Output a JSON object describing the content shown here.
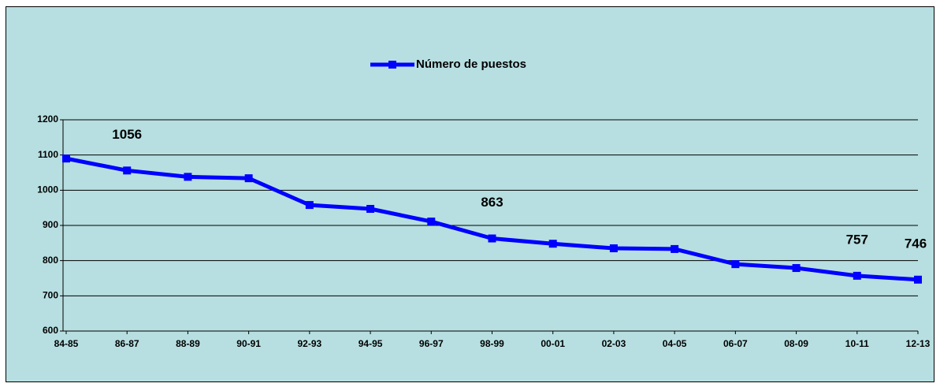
{
  "chart_data": {
    "type": "line",
    "categories": [
      "84-85",
      "86-87",
      "88-89",
      "90-91",
      "92-93",
      "94-95",
      "96-97",
      "98-99",
      "00-01",
      "02-03",
      "04-05",
      "06-07",
      "08-09",
      "10-11",
      "12-13"
    ],
    "series": [
      {
        "name": "Número de puestos",
        "color": "#0000ff",
        "values": [
          1090,
          1056,
          1038,
          1034,
          958,
          947,
          911,
          863,
          848,
          835,
          833,
          790,
          779,
          757,
          746
        ],
        "value_labels": [
          null,
          "1056",
          null,
          null,
          null,
          null,
          null,
          "863",
          null,
          null,
          null,
          null,
          null,
          "757",
          "746"
        ]
      }
    ],
    "ylim": [
      600,
      1200
    ],
    "yticks": [
      600,
      700,
      800,
      900,
      1000,
      1100,
      1200
    ],
    "grid": true,
    "legend": "top"
  }
}
